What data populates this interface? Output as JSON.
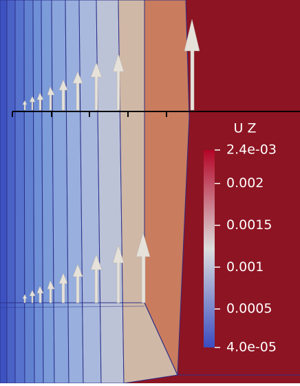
{
  "colorbar": {
    "title": "U Z",
    "ticks": [
      {
        "value": 0.0024,
        "label": "2.4e-03"
      },
      0.002,
      0.0015,
      0.001,
      0.0005,
      {
        "value": 4e-05,
        "label": "4.0e-05"
      }
    ]
  }
}
